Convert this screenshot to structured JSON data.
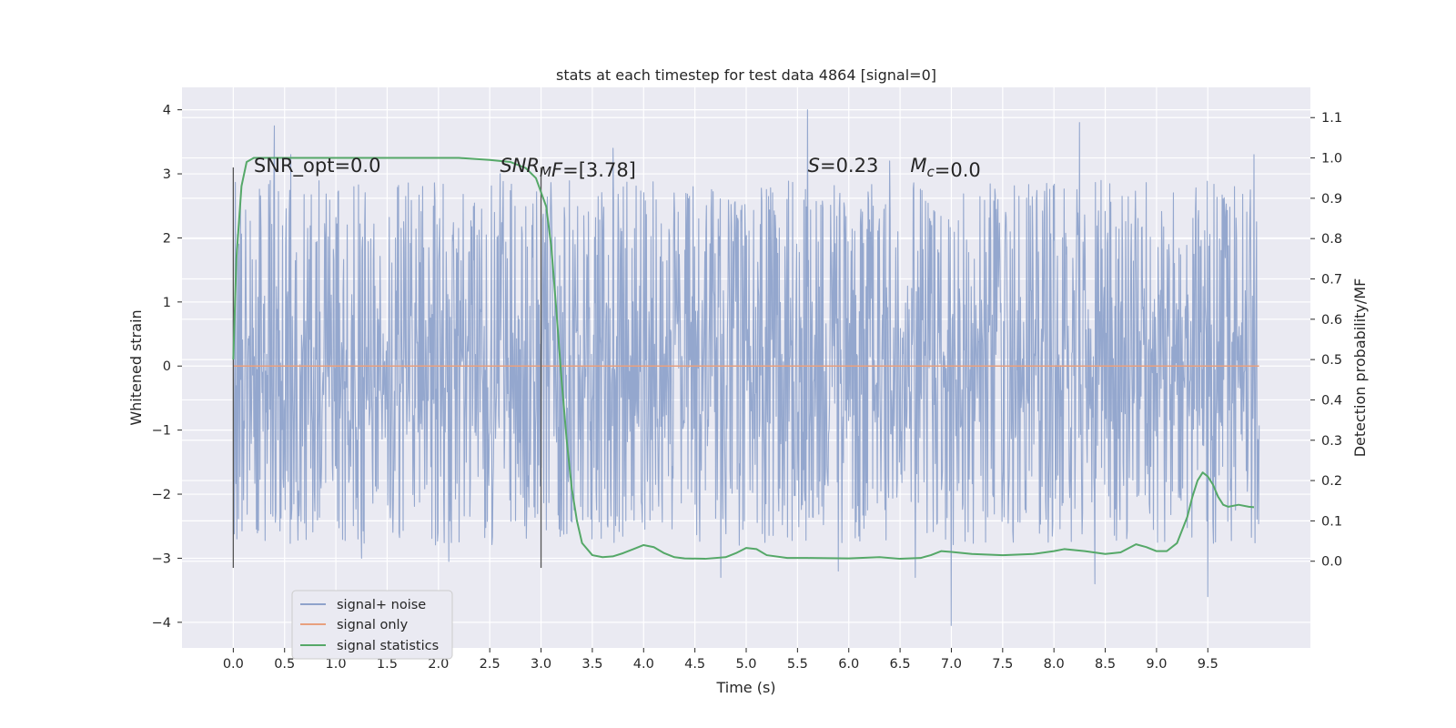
{
  "chart_data": {
    "type": "line",
    "title": "stats at each timestep for test data 4864 [signal=0]",
    "xlabel": "Time (s)",
    "ylabel": "Whitened strain",
    "y2label": "Detection probability/MF",
    "xlim": [
      -0.5,
      10.5
    ],
    "ylim": [
      -4.4,
      4.35
    ],
    "y2lim": [
      -0.215,
      1.175
    ],
    "x_ticks": [
      0.0,
      0.5,
      1.0,
      1.5,
      2.0,
      2.5,
      3.0,
      3.5,
      4.0,
      4.5,
      5.0,
      5.5,
      6.0,
      6.5,
      7.0,
      7.5,
      8.0,
      8.5,
      9.0,
      9.5
    ],
    "x_tick_labels": [
      "0.0",
      "0.5",
      "1.0",
      "1.5",
      "2.0",
      "2.5",
      "3.0",
      "3.5",
      "4.0",
      "4.5",
      "5.0",
      "5.5",
      "6.0",
      "6.5",
      "7.0",
      "7.5",
      "8.0",
      "8.5",
      "9.0",
      "9.5"
    ],
    "y_ticks": [
      -4,
      -3,
      -2,
      -1,
      0,
      1,
      2,
      3,
      4
    ],
    "y_tick_labels": [
      "−4",
      "−3",
      "−2",
      "−1",
      "0",
      "1",
      "2",
      "3",
      "4"
    ],
    "y2_ticks": [
      0.0,
      0.1,
      0.2,
      0.3,
      0.4,
      0.5,
      0.6,
      0.7,
      0.8,
      0.9,
      1.0,
      1.1
    ],
    "y2_tick_labels": [
      "0.0",
      "0.1",
      "0.2",
      "0.3",
      "0.4",
      "0.5",
      "0.6",
      "0.7",
      "0.8",
      "0.9",
      "1.0",
      "1.1"
    ],
    "grid": true,
    "legend_position": "lower-left",
    "legend": [
      "signal+ noise",
      "signal only",
      "signal statistics"
    ],
    "annotations": [
      {
        "x": 0.2,
        "y": 3.1,
        "parts": [
          {
            "text": "SNR_opt=0.0"
          }
        ]
      },
      {
        "x": 2.6,
        "y": 3.1,
        "parts": [
          {
            "text": "SNR",
            "italic": true
          },
          {
            "text": "M",
            "italic": true,
            "sub": true
          },
          {
            "text": "F",
            "italic": true
          },
          {
            "text": "=[3.78]"
          }
        ]
      },
      {
        "x": 5.6,
        "y": 3.1,
        "parts": [
          {
            "text": "S",
            "italic": true
          },
          {
            "text": "=0.23"
          }
        ]
      },
      {
        "x": 6.6,
        "y": 3.1,
        "parts": [
          {
            "text": "M",
            "italic": true
          },
          {
            "text": "c",
            "italic": true,
            "sub": true
          },
          {
            "text": "=0.0"
          }
        ]
      }
    ],
    "vertical_lines": [
      {
        "x": 0.0,
        "y_range": [
          -3.15,
          3.1
        ]
      },
      {
        "x": 3.0,
        "y_range": [
          -3.15,
          3.1
        ]
      }
    ],
    "series": [
      {
        "name": "signal+ noise",
        "color": "#8fa3cb",
        "x_range": [
          0.0,
          10.0
        ],
        "sample_count": 2000,
        "core_band": [
          -1.25,
          1.25
        ],
        "typical_peak": [
          1.6,
          2.9
        ],
        "typical_trough": [
          -1.5,
          -2.8
        ],
        "extremes": [
          {
            "x": 0.4,
            "y": 3.75
          },
          {
            "x": 0.56,
            "y": 3.3
          },
          {
            "x": 1.25,
            "y": -3.0
          },
          {
            "x": 2.1,
            "y": -3.05
          },
          {
            "x": 2.6,
            "y": 3.0
          },
          {
            "x": 3.7,
            "y": 3.4
          },
          {
            "x": 4.75,
            "y": -3.3
          },
          {
            "x": 5.6,
            "y": 4.0
          },
          {
            "x": 5.9,
            "y": -3.2
          },
          {
            "x": 6.4,
            "y": 3.2
          },
          {
            "x": 6.65,
            "y": -3.3
          },
          {
            "x": 7.0,
            "y": -4.05
          },
          {
            "x": 8.25,
            "y": 3.8
          },
          {
            "x": 8.4,
            "y": -3.4
          },
          {
            "x": 9.5,
            "y": -3.6
          },
          {
            "x": 9.95,
            "y": 3.3
          }
        ]
      },
      {
        "name": "signal only",
        "color": "#e8a07e",
        "x": [
          0.0,
          10.0
        ],
        "y": [
          0.0,
          0.0
        ]
      },
      {
        "name": "signal statistics",
        "color": "#55a868",
        "axis": "right",
        "x": [
          0.0,
          0.03,
          0.08,
          0.13,
          0.2,
          0.3,
          0.5,
          1.0,
          1.5,
          2.0,
          2.2,
          2.5,
          2.7,
          2.85,
          2.95,
          3.05,
          3.1,
          3.15,
          3.2,
          3.25,
          3.3,
          3.35,
          3.4,
          3.5,
          3.6,
          3.7,
          3.8,
          3.9,
          4.0,
          4.1,
          4.2,
          4.3,
          4.4,
          4.6,
          4.8,
          4.9,
          5.0,
          5.1,
          5.2,
          5.4,
          5.6,
          6.0,
          6.3,
          6.5,
          6.7,
          6.8,
          6.9,
          7.0,
          7.2,
          7.5,
          7.8,
          8.0,
          8.1,
          8.3,
          8.5,
          8.65,
          8.8,
          8.9,
          9.0,
          9.1,
          9.2,
          9.3,
          9.35,
          9.4,
          9.45,
          9.5,
          9.55,
          9.6,
          9.65,
          9.7,
          9.8,
          9.9,
          9.95
        ],
        "y": [
          0.5,
          0.75,
          0.93,
          0.99,
          1.0,
          1.0,
          1.0,
          1.0,
          1.0,
          1.0,
          1.0,
          0.995,
          0.99,
          0.975,
          0.95,
          0.88,
          0.78,
          0.62,
          0.45,
          0.3,
          0.18,
          0.1,
          0.045,
          0.015,
          0.01,
          0.012,
          0.02,
          0.03,
          0.04,
          0.035,
          0.02,
          0.01,
          0.007,
          0.006,
          0.01,
          0.02,
          0.033,
          0.03,
          0.015,
          0.008,
          0.008,
          0.007,
          0.01,
          0.006,
          0.008,
          0.015,
          0.025,
          0.023,
          0.018,
          0.015,
          0.018,
          0.025,
          0.03,
          0.025,
          0.018,
          0.022,
          0.042,
          0.035,
          0.025,
          0.025,
          0.045,
          0.11,
          0.16,
          0.2,
          0.22,
          0.21,
          0.19,
          0.16,
          0.14,
          0.135,
          0.14,
          0.135,
          0.134
        ]
      }
    ]
  }
}
